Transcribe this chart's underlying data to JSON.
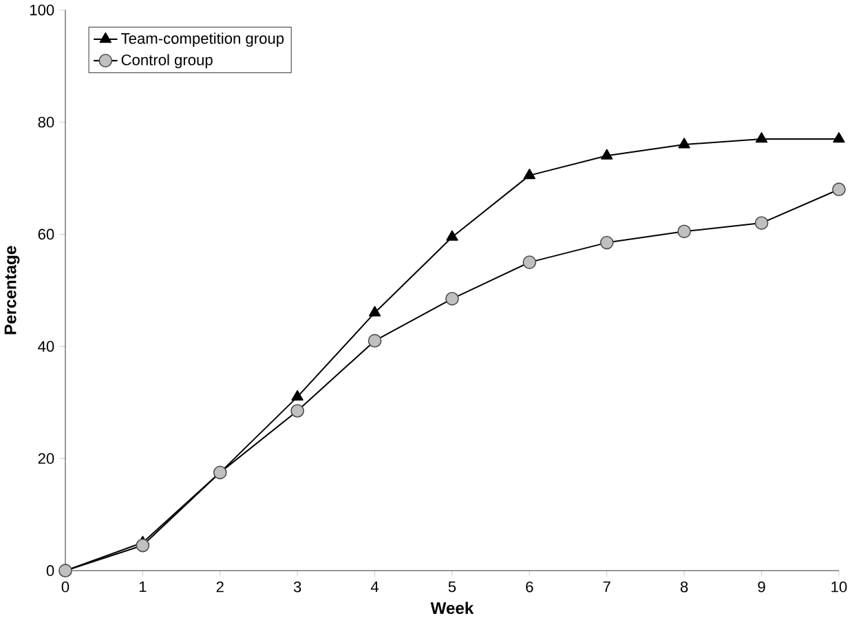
{
  "chart_data": {
    "type": "line",
    "xlabel": "Week",
    "ylabel": "Percentage",
    "x": [
      0,
      1,
      2,
      3,
      4,
      5,
      6,
      7,
      8,
      9,
      10
    ],
    "series": [
      {
        "name": "Team-competition group",
        "color": "#000000",
        "marker": "triangle",
        "values": [
          0,
          5,
          17.5,
          31,
          46,
          59.5,
          70.5,
          74,
          76,
          77,
          77
        ]
      },
      {
        "name": "Control group",
        "color": "#c0c0c0",
        "marker": "circle",
        "values": [
          0,
          4.5,
          17.5,
          28.5,
          41,
          48.5,
          55,
          58.5,
          60.5,
          62,
          68
        ]
      }
    ],
    "xlim": [
      0,
      10
    ],
    "xticks": [
      0,
      1,
      2,
      3,
      4,
      5,
      6,
      7,
      8,
      9,
      10
    ],
    "ylim": [
      0,
      100
    ],
    "yticks": [
      0,
      20,
      40,
      60,
      80,
      100
    ],
    "legend": "top left",
    "line_style": "solid"
  }
}
